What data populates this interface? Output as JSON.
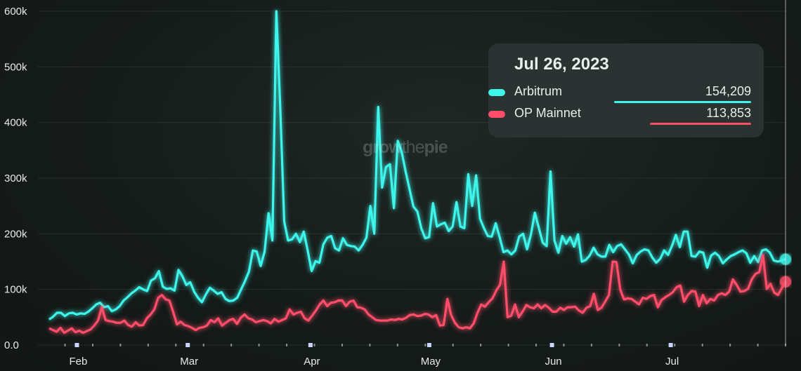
{
  "watermark": {
    "part1": "grow",
    "part2": "the",
    "part3": "pie"
  },
  "tooltip": {
    "date": "Jul 26, 2023",
    "rows": [
      {
        "name": "Arbitrum",
        "value": "154,209",
        "color": "#3ef5ea"
      },
      {
        "name": "OP Mainnet",
        "value": "113,853",
        "color": "#ff4d6a"
      }
    ]
  },
  "chart_data": {
    "type": "line",
    "title": "",
    "xlabel": "",
    "ylabel": "",
    "ylim": [
      0,
      600000
    ],
    "yticks": [
      "0.0",
      "100k",
      "200k",
      "300k",
      "400k",
      "500k",
      "600k"
    ],
    "ytick_values": [
      0,
      100000,
      200000,
      300000,
      400000,
      500000,
      600000
    ],
    "x_start": "2023-01-25",
    "x_end": "2023-07-30",
    "xticks": [
      {
        "label": "Feb",
        "date": "2023-02-01"
      },
      {
        "label": "Mar",
        "date": "2023-03-01"
      },
      {
        "label": "Apr",
        "date": "2023-04-01"
      },
      {
        "label": "May",
        "date": "2023-05-01"
      },
      {
        "label": "Jun",
        "date": "2023-06-01"
      },
      {
        "label": "Jul",
        "date": "2023-07-01"
      }
    ],
    "grid": true,
    "legend": "tooltip",
    "series": [
      {
        "name": "Arbitrum",
        "color": "#3ef5ea",
        "values": [
          46000,
          51000,
          58000,
          58000,
          52000,
          57000,
          58000,
          55000,
          57000,
          56000,
          60000,
          66000,
          73000,
          76000,
          68000,
          70000,
          61000,
          64000,
          70000,
          80000,
          86000,
          93000,
          98000,
          104000,
          100000,
          97000,
          116000,
          120000,
          133000,
          105000,
          101000,
          102000,
          98000,
          135000,
          124000,
          108000,
          113000,
          96000,
          85000,
          77000,
          91000,
          103000,
          98000,
          92000,
          95000,
          83000,
          79000,
          80000,
          85000,
          100000,
          115000,
          132000,
          170000,
          168000,
          142000,
          168000,
          237000,
          188000,
          600000,
          425000,
          222000,
          188000,
          190000,
          200000,
          185000,
          204000,
          170000,
          133000,
          151000,
          148000,
          181000,
          193000,
          196000,
          174000,
          170000,
          192000,
          180000,
          178000,
          177000,
          170000,
          180000,
          193000,
          250000,
          200000,
          428000,
          283000,
          320000,
          325000,
          246000,
          367000,
          347000,
          312000,
          280000,
          249000,
          240000,
          210000,
          192000,
          194000,
          255000,
          213000,
          217000,
          220000,
          205000,
          213000,
          257000,
          213000,
          210000,
          307000,
          250000,
          305000,
          227000,
          210000,
          196000,
          195000,
          219000,
          194000,
          167000,
          170000,
          163000,
          170000,
          195000,
          200000,
          172000,
          199000,
          238000,
          211000,
          184000,
          178000,
          312000,
          188000,
          166000,
          196000,
          182000,
          194000,
          177000,
          199000,
          150000,
          153000,
          161000,
          175000,
          163000,
          159000,
          159000,
          180000,
          167000,
          178000,
          181000,
          172000,
          163000,
          147000,
          162000,
          168000,
          172000,
          170000,
          157000,
          148000,
          155000,
          170000,
          162000,
          178000,
          198000,
          176000,
          204000,
          204000,
          160000,
          159000,
          168000,
          166000,
          139000,
          161000,
          166000,
          160000,
          147000,
          154000,
          160000,
          163000,
          167000,
          170000,
          165000,
          148000,
          160000,
          149000,
          170000,
          172000,
          166000,
          152000,
          150000,
          152000,
          154209
        ],
        "end_value": 154209
      },
      {
        "name": "OP Mainnet",
        "color": "#ff4d6a",
        "values": [
          30000,
          27000,
          24000,
          31000,
          22000,
          26000,
          30000,
          23000,
          26000,
          22000,
          25000,
          28000,
          35000,
          44000,
          68000,
          45000,
          43000,
          42000,
          40000,
          40000,
          44000,
          36000,
          33000,
          41000,
          35000,
          36000,
          48000,
          55000,
          64000,
          85000,
          90000,
          82000,
          80000,
          60000,
          37000,
          42000,
          36000,
          34000,
          31000,
          27000,
          31000,
          32000,
          35000,
          45000,
          41000,
          48000,
          35000,
          40000,
          45000,
          47000,
          38000,
          49000,
          55000,
          48000,
          46000,
          41000,
          43000,
          45000,
          43000,
          39000,
          47000,
          42000,
          45000,
          48000,
          64000,
          55000,
          58000,
          60000,
          48000,
          44000,
          53000,
          62000,
          73000,
          80000,
          70000,
          76000,
          77000,
          80000,
          80000,
          70000,
          78000,
          80000,
          68000,
          67000,
          64000,
          55000,
          50000,
          45000,
          44000,
          44000,
          44000,
          46000,
          45000,
          47000,
          46000,
          49000,
          54000,
          55000,
          52000,
          53000,
          56000,
          55000,
          50000,
          54000,
          35000,
          36000,
          83000,
          54000,
          40000,
          32000,
          30000,
          32000,
          30000,
          39000,
          58000,
          73000,
          69000,
          77000,
          84000,
          98000,
          108000,
          150000,
          50000,
          53000,
          73000,
          50000,
          60000,
          72000,
          68000,
          66000,
          73000,
          66000,
          72000,
          67000,
          60000,
          60000,
          67000,
          63000,
          68000,
          68000,
          69000,
          62000,
          58000,
          67000,
          70000,
          92000,
          63000,
          67000,
          78000,
          90000,
          150000,
          149000,
          100000,
          82000,
          84000,
          83000,
          78000,
          73000,
          85000,
          83000,
          88000,
          90000,
          68000,
          81000,
          86000,
          90000,
          95000,
          104000,
          107000,
          78000,
          90000,
          97000,
          96000,
          70000,
          90000,
          75000,
          83000,
          80000,
          90000,
          93000,
          90000,
          96000,
          118000,
          108000,
          96000,
          97000,
          101000,
          118000,
          128000,
          131000,
          162000,
          101000,
          110000,
          94000,
          90000,
          102000,
          113853
        ],
        "end_value": 113853
      }
    ]
  }
}
